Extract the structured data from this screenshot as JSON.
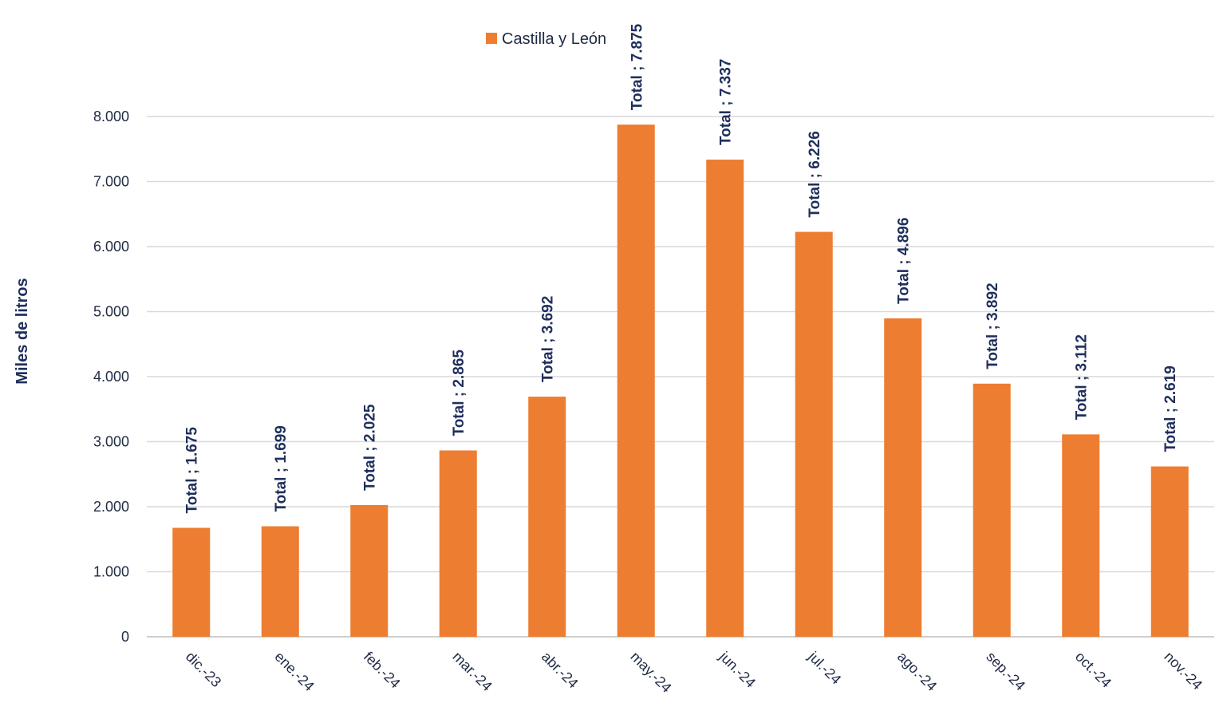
{
  "chart_data": {
    "type": "bar",
    "ylabel": "Miles de litros",
    "xlabel": "",
    "ylim": [
      0,
      8000
    ],
    "yticks": [
      0,
      1000,
      2000,
      3000,
      4000,
      5000,
      6000,
      7000,
      8000
    ],
    "ytick_labels": [
      "0",
      "1.000",
      "2.000",
      "3.000",
      "4.000",
      "5.000",
      "6.000",
      "7.000",
      "8.000"
    ],
    "grid": true,
    "legend_position": "top-center",
    "categories": [
      "dic.-23",
      "ene.-24",
      "feb.-24",
      "mar.-24",
      "abr.-24",
      "may.-24",
      "jun.-24",
      "jul.-24",
      "ago.-24",
      "sep.-24",
      "oct.-24",
      "nov.-24"
    ],
    "series": [
      {
        "name": "Castilla y León",
        "color": "#ed7d31",
        "values": [
          1675,
          1699,
          2025,
          2865,
          3692,
          7875,
          7337,
          6226,
          4896,
          3892,
          3112,
          2619
        ],
        "data_labels": [
          "Total ; 1.675",
          "Total ; 1.699",
          "Total ; 2.025",
          "Total ; 2.865",
          "Total ; 3.692",
          "Total ; 7.875",
          "Total ; 7.337",
          "Total ; 6.226",
          "Total ; 4.896",
          "Total ; 3.892",
          "Total ; 3.112",
          "Total ; 2.619"
        ]
      }
    ]
  }
}
